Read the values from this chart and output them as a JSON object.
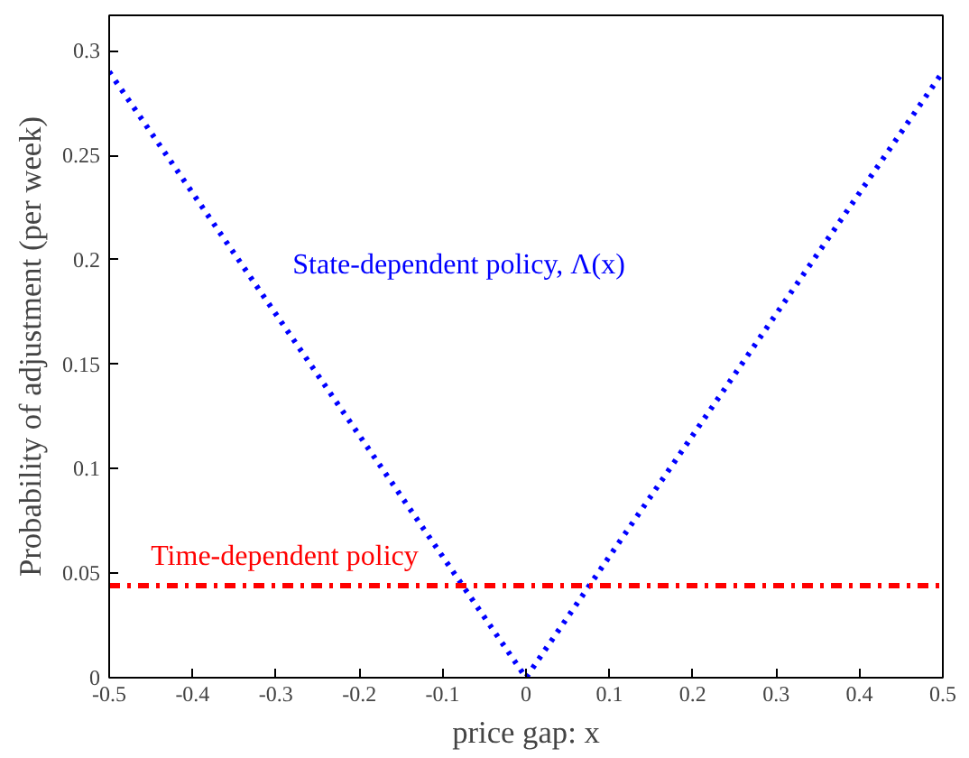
{
  "chart_data": {
    "type": "line",
    "xlabel": "price gap: x",
    "ylabel": "Probability of adjustment (per week)",
    "xlim": [
      -0.5,
      0.5
    ],
    "ylim": [
      0,
      0.317
    ],
    "xticks": [
      -0.5,
      -0.4,
      -0.3,
      -0.2,
      -0.1,
      0,
      0.1,
      0.2,
      0.3,
      0.4,
      0.5
    ],
    "yticks": [
      0,
      0.05,
      0.1,
      0.15,
      0.2,
      0.25,
      0.3
    ],
    "grid": false,
    "series": [
      {
        "name": "State-dependent policy, Λ(x)",
        "color": "#0000ff",
        "line_style": "dotted",
        "x": [
          -0.5,
          0,
          0.5
        ],
        "values": [
          0.29,
          0,
          0.29
        ]
      },
      {
        "name": "Time-dependent policy",
        "color": "#ff0000",
        "line_style": "dashed",
        "x": [
          -0.5,
          0.5
        ],
        "values": [
          0.044,
          0.044
        ]
      }
    ]
  }
}
